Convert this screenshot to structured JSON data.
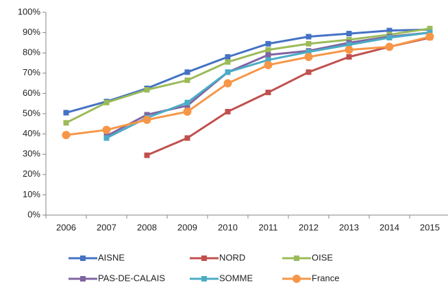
{
  "chart_data": {
    "type": "line",
    "categories": [
      "2006",
      "2007",
      "2008",
      "2009",
      "2010",
      "2011",
      "2012",
      "2013",
      "2014",
      "2015"
    ],
    "series": [
      {
        "name": "AISNE",
        "color": "#4472c4",
        "marker": "square",
        "values": [
          50.5,
          56,
          62.5,
          70.5,
          78,
          84.5,
          88,
          89.5,
          91,
          91.5
        ]
      },
      {
        "name": "NORD",
        "color": "#c0504d",
        "marker": "square",
        "values": [
          null,
          null,
          29.5,
          38,
          51,
          60.5,
          70.5,
          78,
          83,
          87.5
        ]
      },
      {
        "name": "OISE",
        "color": "#9bbb59",
        "marker": "square",
        "values": [
          45.5,
          55.5,
          61.8,
          66.5,
          75.5,
          81.5,
          84.5,
          86.5,
          89,
          92
        ]
      },
      {
        "name": "PAS-DE-CALAIS",
        "color": "#8064a2",
        "marker": "square",
        "values": [
          null,
          39,
          49.5,
          54,
          70.5,
          79,
          81,
          85,
          88,
          90
        ]
      },
      {
        "name": "SOMME",
        "color": "#4bacc6",
        "marker": "square",
        "values": [
          null,
          38,
          48,
          55.5,
          70.5,
          76.5,
          80.5,
          84,
          87.5,
          90
        ]
      },
      {
        "name": "France",
        "color": "#f79646",
        "marker": "circle",
        "values": [
          39.5,
          42,
          47,
          51,
          65,
          74,
          78,
          81.5,
          83,
          88
        ]
      }
    ],
    "ylim": [
      0,
      100
    ],
    "yticks": [
      {
        "value": 0,
        "label": "0%"
      },
      {
        "value": 10,
        "label": "10%"
      },
      {
        "value": 20,
        "label": "20%"
      },
      {
        "value": 30,
        "label": "30%"
      },
      {
        "value": 40,
        "label": "40%"
      },
      {
        "value": 50,
        "label": "50%"
      },
      {
        "value": 60,
        "label": "60%"
      },
      {
        "value": 70,
        "label": "70%"
      },
      {
        "value": 80,
        "label": "80%"
      },
      {
        "value": 90,
        "label": "90%"
      },
      {
        "value": 100,
        "label": "100%"
      }
    ],
    "grid": false,
    "legend": "bottom"
  }
}
